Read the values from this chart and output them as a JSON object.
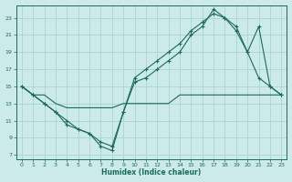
{
  "xlabel": "Humidex (Indice chaleur)",
  "bg_color": "#cceaea",
  "line_color": "#1a6b5a",
  "grid_color": "#aad4d4",
  "xlim": [
    -0.5,
    23.5
  ],
  "ylim": [
    6.5,
    24.5
  ],
  "yticks": [
    7,
    9,
    11,
    13,
    15,
    17,
    19,
    21,
    23
  ],
  "xticks": [
    0,
    1,
    2,
    3,
    4,
    5,
    6,
    7,
    8,
    9,
    10,
    11,
    12,
    13,
    14,
    15,
    16,
    17,
    18,
    19,
    20,
    21,
    22,
    23
  ],
  "line1_x": [
    0,
    1,
    2,
    3,
    4,
    5,
    6,
    7,
    8,
    9,
    10,
    11,
    12,
    13,
    14,
    15,
    16,
    17,
    18,
    19,
    20,
    21,
    22,
    23
  ],
  "line1_y": [
    15,
    14,
    14,
    13,
    12.5,
    12.5,
    12.5,
    12.5,
    12.5,
    13,
    13,
    13,
    13,
    13,
    14,
    14,
    14,
    14,
    14,
    14,
    14,
    14,
    14,
    14
  ],
  "line2_x": [
    0,
    1,
    2,
    3,
    4,
    5,
    6,
    7,
    8,
    9,
    10,
    11,
    12,
    13,
    14,
    15,
    16,
    17,
    18,
    19,
    20,
    21,
    22,
    23
  ],
  "line2_y": [
    15,
    14,
    13,
    12,
    10.5,
    10,
    9.5,
    8,
    7.5,
    12,
    15.5,
    16,
    17,
    18,
    19,
    21,
    22,
    24,
    23,
    22,
    19,
    16,
    15,
    14
  ],
  "line3_x": [
    0,
    1,
    2,
    3,
    4,
    5,
    6,
    7,
    8,
    9,
    10,
    11,
    12,
    13,
    14,
    15,
    16,
    17,
    18,
    19,
    20,
    21,
    22,
    23
  ],
  "line3_y": [
    15,
    14,
    13,
    12,
    11,
    10,
    9.5,
    8.5,
    8,
    12,
    16,
    17,
    18,
    19,
    20,
    21.5,
    22.5,
    23.5,
    23,
    21.5,
    19,
    22,
    15,
    14
  ]
}
